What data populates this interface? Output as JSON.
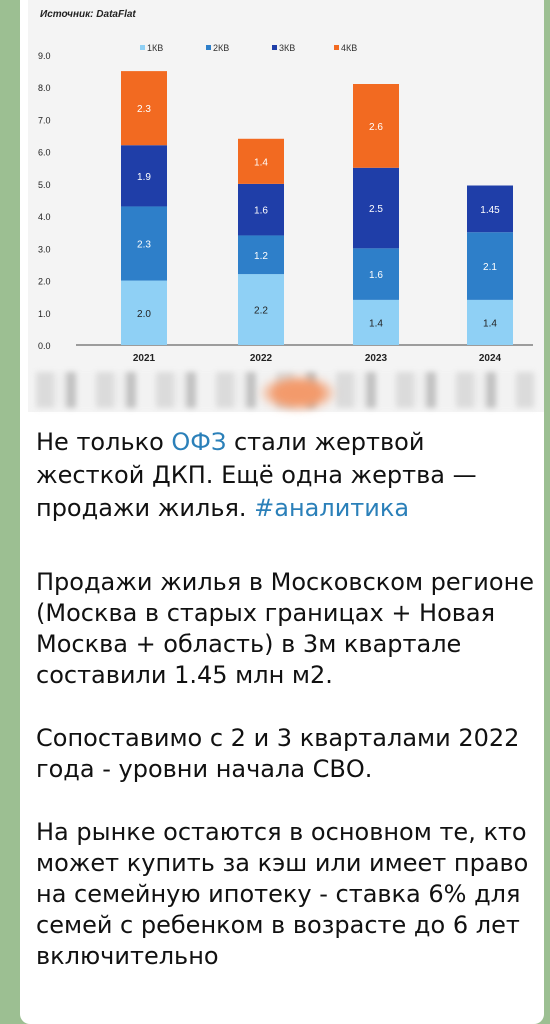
{
  "chart_data": {
    "type": "bar",
    "stacked": true,
    "source": "Источник: DataFlat",
    "categories": [
      "2021",
      "2022",
      "2023",
      "2024"
    ],
    "y_ticks": [
      "0.0",
      "1.0",
      "2.0",
      "3.0",
      "4.0",
      "5.0",
      "6.0",
      "7.0",
      "8.0",
      "9.0"
    ],
    "ylim": [
      0,
      9
    ],
    "legend_position": "top",
    "series": [
      {
        "name": "1КВ",
        "color": "#8fd0f5",
        "values": [
          2.0,
          2.2,
          1.4,
          1.4
        ],
        "labels": [
          "2.0",
          "2.2",
          "1.4",
          "1.4"
        ]
      },
      {
        "name": "2КВ",
        "color": "#2e7fc9",
        "values": [
          2.3,
          1.2,
          1.6,
          2.1
        ],
        "labels": [
          "2.3",
          "1.2",
          "1.6",
          "2.1"
        ]
      },
      {
        "name": "3КВ",
        "color": "#1f3ea8",
        "values": [
          1.9,
          1.6,
          2.5,
          1.45
        ],
        "labels": [
          "1.9",
          "1.6",
          "2.5",
          "1.45"
        ]
      },
      {
        "name": "4КВ",
        "color": "#f26a21",
        "values": [
          2.3,
          1.4,
          2.6,
          null
        ],
        "labels": [
          "2.3",
          "1.4",
          "2.6",
          ""
        ]
      }
    ]
  },
  "post": {
    "headline_pre": "Не только ",
    "headline_link": "ОФЗ",
    "headline_mid": " стали жертвой жесткой ДКП. Ещё одна жертва — продажи жилья. ",
    "headline_tag": "#аналитика",
    "para1": "Продажи жилья в Московском регионе (Москва в старых границах + Новая Москва + область) в 3м квартале составили 1.45 млн м2.",
    "para2": "Сопоставимо с 2 и 3 кварталами 2022 года - уровни начала СВО.",
    "para3": "На рынке остаются в основном те, кто может купить за кэш или имеет право на семейную ипотеку - ставка 6% для семей с ребенком в возрасте до 6 лет включительно"
  }
}
